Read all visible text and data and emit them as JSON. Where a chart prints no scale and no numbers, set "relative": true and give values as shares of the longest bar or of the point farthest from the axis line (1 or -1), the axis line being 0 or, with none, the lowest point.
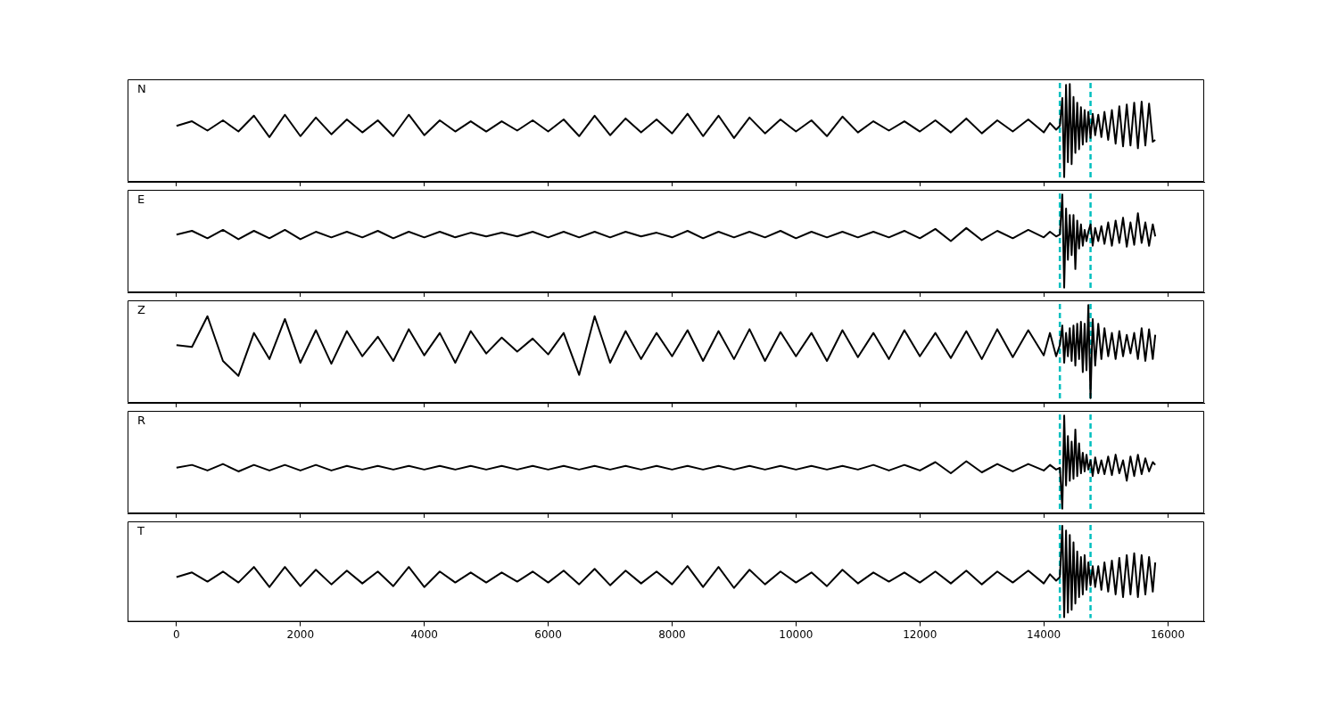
{
  "chart_data": [
    {
      "type": "line",
      "title": "N",
      "relative": true,
      "xlim": [
        -790,
        16590
      ],
      "xticks": [
        0,
        2000,
        4000,
        6000,
        8000,
        10000,
        12000,
        14000,
        16000
      ],
      "tick_labels": false,
      "ref_lines": [
        {
          "axis": "x",
          "value": 14260,
          "color": "#00bfbf",
          "line_style": "dashed"
        },
        {
          "axis": "x",
          "value": 14755,
          "color": "#00bfbf",
          "line_style": "dashed"
        }
      ],
      "x": [
        0,
        250,
        500,
        750,
        1000,
        1250,
        1500,
        1750,
        2000,
        2250,
        2500,
        2750,
        3000,
        3250,
        3500,
        3750,
        4000,
        4250,
        4500,
        4750,
        5000,
        5250,
        5500,
        5750,
        6000,
        6250,
        6500,
        6750,
        7000,
        7250,
        7500,
        7750,
        8000,
        8250,
        8500,
        8750,
        9000,
        9250,
        9500,
        9750,
        10000,
        10250,
        10500,
        10750,
        11000,
        11250,
        11500,
        11750,
        12000,
        12250,
        12500,
        12750,
        13000,
        13250,
        13500,
        13750,
        14000,
        14100,
        14200,
        14260,
        14300,
        14330,
        14360,
        14390,
        14420,
        14450,
        14480,
        14510,
        14540,
        14570,
        14600,
        14630,
        14660,
        14690,
        14720,
        14755,
        14790,
        14830,
        14880,
        14930,
        14980,
        15040,
        15100,
        15160,
        15220,
        15280,
        15340,
        15400,
        15460,
        15520,
        15580,
        15640,
        15700,
        15760,
        15800
      ],
      "series": [
        {
          "color": "#000000",
          "values": [
            0.55,
            0.6,
            0.5,
            0.61,
            0.49,
            0.66,
            0.43,
            0.67,
            0.44,
            0.64,
            0.46,
            0.62,
            0.48,
            0.61,
            0.44,
            0.67,
            0.45,
            0.61,
            0.49,
            0.6,
            0.49,
            0.6,
            0.5,
            0.61,
            0.49,
            0.62,
            0.44,
            0.66,
            0.45,
            0.63,
            0.48,
            0.62,
            0.47,
            0.68,
            0.44,
            0.66,
            0.42,
            0.64,
            0.47,
            0.62,
            0.49,
            0.61,
            0.44,
            0.65,
            0.48,
            0.6,
            0.5,
            0.6,
            0.49,
            0.61,
            0.48,
            0.63,
            0.47,
            0.61,
            0.49,
            0.62,
            0.48,
            0.58,
            0.51,
            0.55,
            0.85,
            0.0,
            0.99,
            0.16,
            1.0,
            0.14,
            0.86,
            0.26,
            0.8,
            0.3,
            0.75,
            0.35,
            0.72,
            0.38,
            0.7,
            0.42,
            0.68,
            0.45,
            0.67,
            0.43,
            0.7,
            0.4,
            0.72,
            0.36,
            0.76,
            0.33,
            0.78,
            0.34,
            0.8,
            0.31,
            0.81,
            0.34,
            0.79,
            0.38,
            0.4
          ]
        }
      ]
    },
    {
      "type": "line",
      "title": "E",
      "relative": true,
      "xlim": [
        -790,
        16590
      ],
      "xticks": [
        0,
        2000,
        4000,
        6000,
        8000,
        10000,
        12000,
        14000,
        16000
      ],
      "tick_labels": false,
      "ref_lines": [
        {
          "axis": "x",
          "value": 14260,
          "color": "#00bfbf",
          "line_style": "dashed"
        },
        {
          "axis": "x",
          "value": 14755,
          "color": "#00bfbf",
          "line_style": "dashed"
        }
      ],
      "x": [
        0,
        250,
        500,
        750,
        1000,
        1250,
        1500,
        1750,
        2000,
        2250,
        2500,
        2750,
        3000,
        3250,
        3500,
        3750,
        4000,
        4250,
        4500,
        4750,
        5000,
        5250,
        5500,
        5750,
        6000,
        6250,
        6500,
        6750,
        7000,
        7250,
        7500,
        7750,
        8000,
        8250,
        8500,
        8750,
        9000,
        9250,
        9500,
        9750,
        10000,
        10250,
        10500,
        10750,
        11000,
        11250,
        11500,
        11750,
        12000,
        12250,
        12500,
        12750,
        13000,
        13250,
        13500,
        13750,
        14000,
        14100,
        14200,
        14260,
        14300,
        14330,
        14360,
        14390,
        14420,
        14450,
        14480,
        14510,
        14540,
        14570,
        14600,
        14630,
        14660,
        14690,
        14720,
        14755,
        14790,
        14830,
        14880,
        14930,
        14980,
        15040,
        15100,
        15160,
        15220,
        15280,
        15340,
        15400,
        15460,
        15520,
        15580,
        15640,
        15700,
        15760,
        15800
      ],
      "series": [
        {
          "color": "#000000",
          "values": [
            0.57,
            0.61,
            0.53,
            0.62,
            0.52,
            0.61,
            0.53,
            0.62,
            0.52,
            0.6,
            0.54,
            0.6,
            0.54,
            0.61,
            0.53,
            0.6,
            0.54,
            0.6,
            0.54,
            0.59,
            0.55,
            0.59,
            0.55,
            0.6,
            0.54,
            0.6,
            0.54,
            0.6,
            0.54,
            0.6,
            0.55,
            0.59,
            0.54,
            0.61,
            0.53,
            0.6,
            0.54,
            0.6,
            0.54,
            0.61,
            0.53,
            0.6,
            0.54,
            0.6,
            0.54,
            0.6,
            0.54,
            0.61,
            0.53,
            0.63,
            0.5,
            0.64,
            0.51,
            0.61,
            0.53,
            0.62,
            0.54,
            0.6,
            0.55,
            0.57,
            1.0,
            0.0,
            0.85,
            0.3,
            0.78,
            0.35,
            0.78,
            0.2,
            0.72,
            0.42,
            0.68,
            0.45,
            0.62,
            0.5,
            0.6,
            0.68,
            0.45,
            0.64,
            0.5,
            0.66,
            0.47,
            0.7,
            0.45,
            0.72,
            0.48,
            0.75,
            0.44,
            0.7,
            0.46,
            0.8,
            0.48,
            0.7,
            0.45,
            0.68,
            0.55
          ]
        }
      ]
    },
    {
      "type": "line",
      "title": "Z",
      "relative": true,
      "xlim": [
        -790,
        16590
      ],
      "xticks": [
        0,
        2000,
        4000,
        6000,
        8000,
        10000,
        12000,
        14000,
        16000
      ],
      "tick_labels": false,
      "ref_lines": [
        {
          "axis": "x",
          "value": 14260,
          "color": "#00bfbf",
          "line_style": "dashed"
        },
        {
          "axis": "x",
          "value": 14755,
          "color": "#00bfbf",
          "line_style": "dashed"
        }
      ],
      "x": [
        0,
        250,
        500,
        750,
        1000,
        1250,
        1500,
        1750,
        2000,
        2250,
        2500,
        2750,
        3000,
        3250,
        3500,
        3750,
        4000,
        4250,
        4500,
        4750,
        5000,
        5250,
        5500,
        5750,
        6000,
        6250,
        6500,
        6750,
        7000,
        7250,
        7500,
        7750,
        8000,
        8250,
        8500,
        8750,
        9000,
        9250,
        9500,
        9750,
        10000,
        10250,
        10500,
        10750,
        11000,
        11250,
        11500,
        11750,
        12000,
        12250,
        12500,
        12750,
        13000,
        13250,
        13500,
        13750,
        14000,
        14100,
        14200,
        14260,
        14300,
        14330,
        14360,
        14390,
        14420,
        14450,
        14480,
        14510,
        14540,
        14570,
        14600,
        14630,
        14660,
        14690,
        14720,
        14755,
        14790,
        14830,
        14880,
        14930,
        14980,
        15040,
        15100,
        15160,
        15220,
        15280,
        15340,
        15400,
        15460,
        15520,
        15580,
        15640,
        15700,
        15760,
        15800
      ],
      "series": [
        {
          "color": "#000000",
          "values": [
            0.57,
            0.55,
            0.88,
            0.4,
            0.24,
            0.7,
            0.42,
            0.85,
            0.38,
            0.73,
            0.37,
            0.72,
            0.45,
            0.66,
            0.4,
            0.74,
            0.46,
            0.7,
            0.38,
            0.72,
            0.48,
            0.65,
            0.5,
            0.64,
            0.47,
            0.7,
            0.25,
            0.88,
            0.38,
            0.72,
            0.42,
            0.7,
            0.45,
            0.73,
            0.4,
            0.72,
            0.42,
            0.74,
            0.4,
            0.71,
            0.45,
            0.7,
            0.4,
            0.73,
            0.44,
            0.7,
            0.42,
            0.73,
            0.45,
            0.7,
            0.43,
            0.72,
            0.42,
            0.74,
            0.44,
            0.73,
            0.46,
            0.7,
            0.45,
            0.57,
            0.78,
            0.38,
            0.7,
            0.45,
            0.75,
            0.4,
            0.78,
            0.35,
            0.8,
            0.42,
            0.82,
            0.28,
            0.8,
            0.3,
            1.0,
            0.0,
            0.85,
            0.35,
            0.8,
            0.42,
            0.75,
            0.45,
            0.7,
            0.42,
            0.72,
            0.45,
            0.68,
            0.48,
            0.7,
            0.42,
            0.75,
            0.4,
            0.74,
            0.42,
            0.68
          ]
        }
      ]
    },
    {
      "type": "line",
      "title": "R",
      "relative": true,
      "xlim": [
        -790,
        16590
      ],
      "xticks": [
        0,
        2000,
        4000,
        6000,
        8000,
        10000,
        12000,
        14000,
        16000
      ],
      "tick_labels": false,
      "ref_lines": [
        {
          "axis": "x",
          "value": 14260,
          "color": "#00bfbf",
          "line_style": "dashed"
        },
        {
          "axis": "x",
          "value": 14755,
          "color": "#00bfbf",
          "line_style": "dashed"
        }
      ],
      "x": [
        0,
        250,
        500,
        750,
        1000,
        1250,
        1500,
        1750,
        2000,
        2250,
        2500,
        2750,
        3000,
        3250,
        3500,
        3750,
        4000,
        4250,
        4500,
        4750,
        5000,
        5250,
        5500,
        5750,
        6000,
        6250,
        6500,
        6750,
        7000,
        7250,
        7500,
        7750,
        8000,
        8250,
        8500,
        8750,
        9000,
        9250,
        9500,
        9750,
        10000,
        10250,
        10500,
        10750,
        11000,
        11250,
        11500,
        11750,
        12000,
        12250,
        12500,
        12750,
        13000,
        13250,
        13500,
        13750,
        14000,
        14100,
        14200,
        14260,
        14300,
        14330,
        14360,
        14390,
        14420,
        14450,
        14480,
        14510,
        14540,
        14570,
        14600,
        14630,
        14660,
        14690,
        14720,
        14755,
        14790,
        14830,
        14880,
        14930,
        14980,
        15040,
        15100,
        15160,
        15220,
        15280,
        15340,
        15400,
        15460,
        15520,
        15580,
        15640,
        15700,
        15760,
        15800
      ],
      "series": [
        {
          "color": "#000000",
          "values": [
            0.44,
            0.47,
            0.41,
            0.48,
            0.4,
            0.47,
            0.41,
            0.47,
            0.41,
            0.47,
            0.41,
            0.46,
            0.42,
            0.46,
            0.42,
            0.46,
            0.42,
            0.46,
            0.42,
            0.46,
            0.42,
            0.46,
            0.42,
            0.46,
            0.42,
            0.46,
            0.42,
            0.46,
            0.42,
            0.46,
            0.42,
            0.46,
            0.42,
            0.46,
            0.42,
            0.46,
            0.42,
            0.46,
            0.42,
            0.46,
            0.42,
            0.46,
            0.42,
            0.46,
            0.42,
            0.47,
            0.41,
            0.47,
            0.41,
            0.5,
            0.38,
            0.51,
            0.39,
            0.48,
            0.4,
            0.48,
            0.41,
            0.47,
            0.42,
            0.44,
            0.0,
            1.0,
            0.25,
            0.78,
            0.3,
            0.72,
            0.32,
            0.85,
            0.35,
            0.7,
            0.38,
            0.6,
            0.4,
            0.58,
            0.42,
            0.52,
            0.35,
            0.55,
            0.38,
            0.52,
            0.37,
            0.56,
            0.36,
            0.58,
            0.38,
            0.52,
            0.3,
            0.56,
            0.35,
            0.58,
            0.37,
            0.54,
            0.4,
            0.5,
            0.47
          ]
        }
      ]
    },
    {
      "type": "line",
      "title": "T",
      "relative": true,
      "xlim": [
        -790,
        16590
      ],
      "xticks": [
        0,
        2000,
        4000,
        6000,
        8000,
        10000,
        12000,
        14000,
        16000
      ],
      "tick_labels": "x",
      "ref_lines": [
        {
          "axis": "x",
          "value": 14260,
          "color": "#00bfbf",
          "line_style": "dashed"
        },
        {
          "axis": "x",
          "value": 14755,
          "color": "#00bfbf",
          "line_style": "dashed"
        }
      ],
      "x": [
        0,
        250,
        500,
        750,
        1000,
        1250,
        1500,
        1750,
        2000,
        2250,
        2500,
        2750,
        3000,
        3250,
        3500,
        3750,
        4000,
        4250,
        4500,
        4750,
        5000,
        5250,
        5500,
        5750,
        6000,
        6250,
        6500,
        6750,
        7000,
        7250,
        7500,
        7750,
        8000,
        8250,
        8500,
        8750,
        9000,
        9250,
        9500,
        9750,
        10000,
        10250,
        10500,
        10750,
        11000,
        11250,
        11500,
        11750,
        12000,
        12250,
        12500,
        12750,
        13000,
        13250,
        13500,
        13750,
        14000,
        14100,
        14200,
        14260,
        14300,
        14330,
        14360,
        14390,
        14420,
        14450,
        14480,
        14510,
        14540,
        14570,
        14600,
        14630,
        14660,
        14690,
        14720,
        14755,
        14790,
        14830,
        14880,
        14930,
        14980,
        15040,
        15100,
        15160,
        15220,
        15280,
        15340,
        15400,
        15460,
        15520,
        15580,
        15640,
        15700,
        15760,
        15800
      ],
      "series": [
        {
          "color": "#000000",
          "values": [
            0.44,
            0.49,
            0.39,
            0.5,
            0.38,
            0.55,
            0.33,
            0.55,
            0.34,
            0.52,
            0.36,
            0.51,
            0.37,
            0.5,
            0.34,
            0.55,
            0.33,
            0.5,
            0.38,
            0.49,
            0.38,
            0.49,
            0.39,
            0.5,
            0.38,
            0.51,
            0.36,
            0.53,
            0.35,
            0.51,
            0.37,
            0.5,
            0.36,
            0.56,
            0.33,
            0.55,
            0.32,
            0.52,
            0.36,
            0.5,
            0.38,
            0.49,
            0.34,
            0.52,
            0.37,
            0.49,
            0.39,
            0.49,
            0.38,
            0.5,
            0.37,
            0.51,
            0.36,
            0.5,
            0.38,
            0.51,
            0.37,
            0.47,
            0.4,
            0.44,
            1.0,
            0.0,
            0.95,
            0.05,
            0.9,
            0.08,
            0.82,
            0.15,
            0.72,
            0.22,
            0.66,
            0.25,
            0.68,
            0.3,
            0.6,
            0.35,
            0.56,
            0.33,
            0.56,
            0.3,
            0.6,
            0.28,
            0.62,
            0.25,
            0.65,
            0.22,
            0.68,
            0.25,
            0.7,
            0.22,
            0.68,
            0.25,
            0.66,
            0.28,
            0.6
          ]
        }
      ]
    }
  ]
}
